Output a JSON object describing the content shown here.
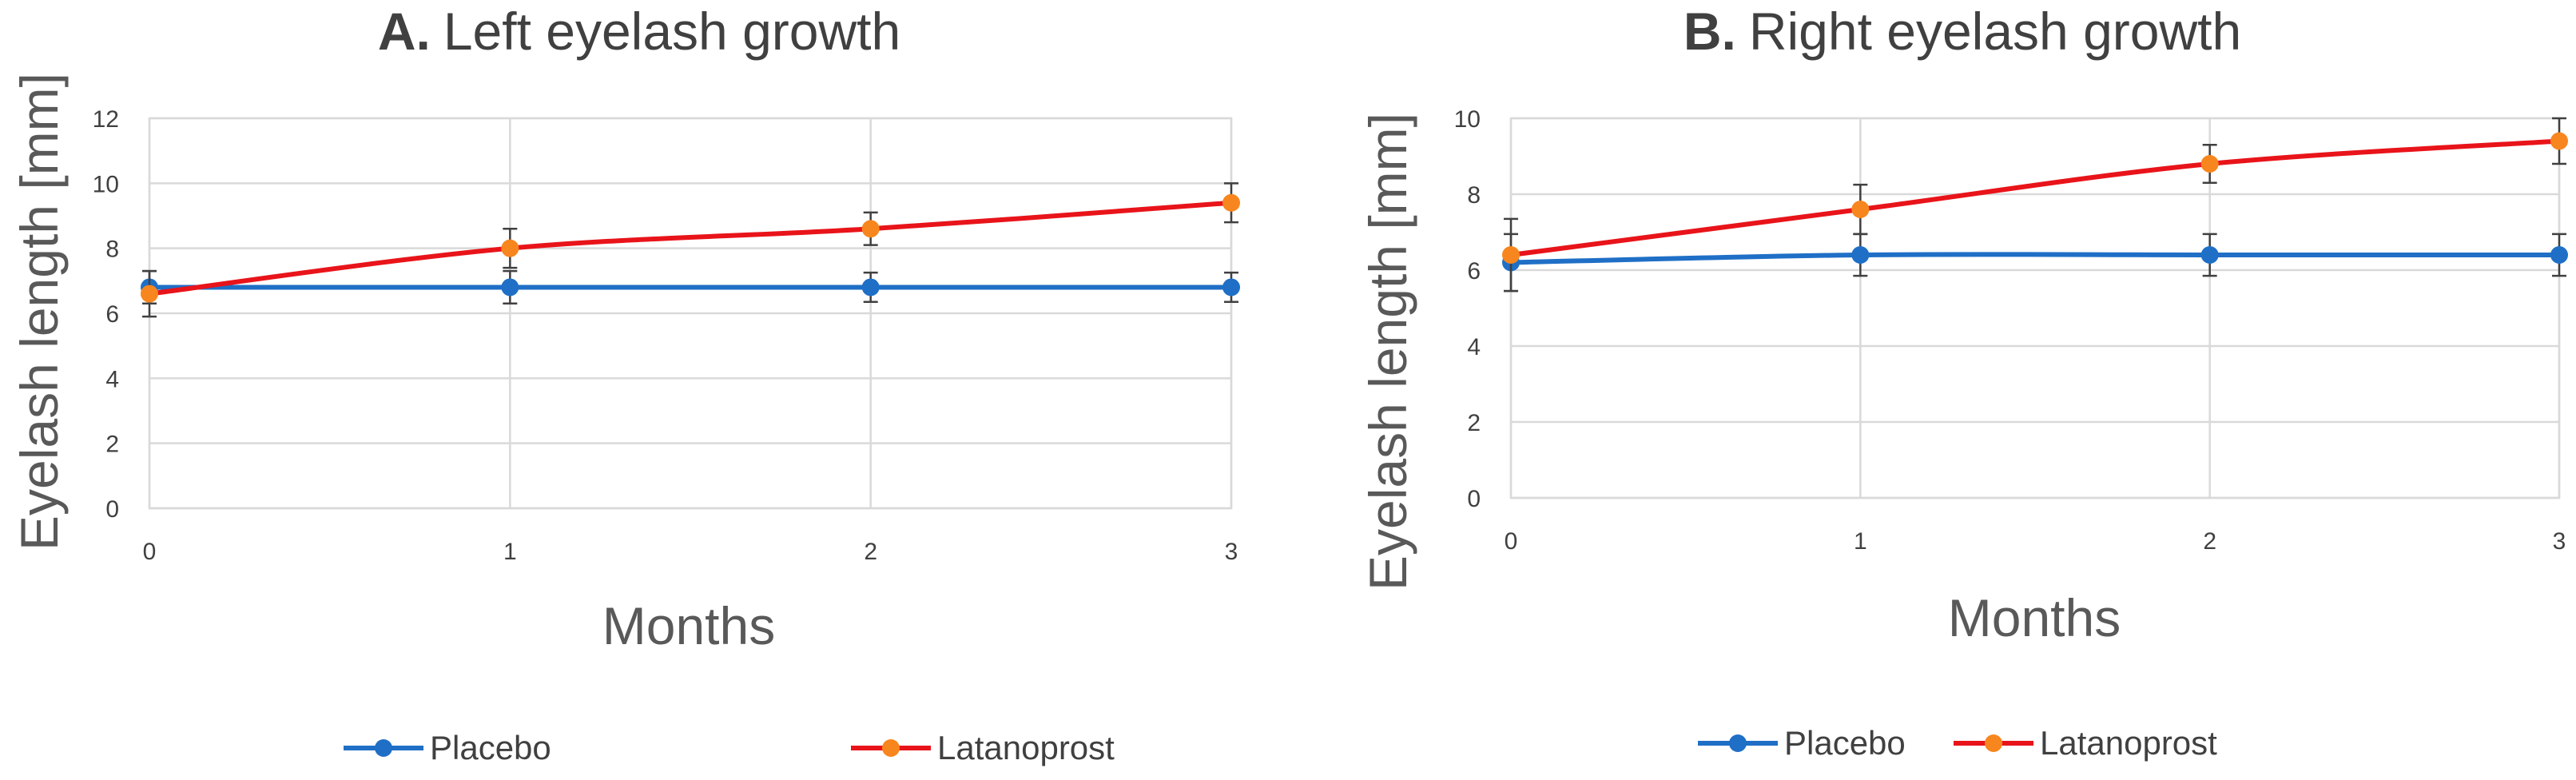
{
  "chart_data": [
    {
      "type": "line",
      "title_prefix": "A.",
      "title": "Left eyelash growth",
      "xlabel": "Months",
      "ylabel": "Eyelash length [mm]",
      "x": [
        0,
        1,
        2,
        3
      ],
      "xticks": [
        "0",
        "1",
        "2",
        "3"
      ],
      "ylim": [
        0,
        12
      ],
      "yticks": [
        "0",
        "2",
        "4",
        "6",
        "8",
        "10",
        "12"
      ],
      "grid": true,
      "legend_position": "bottom",
      "series": [
        {
          "name": "Placebo",
          "line_color": "#1f6fc6",
          "marker_color": "#1f6fc6",
          "values": [
            6.8,
            6.8,
            6.8,
            6.8
          ],
          "errors": [
            0.5,
            0.5,
            0.45,
            0.45
          ]
        },
        {
          "name": "Latanoprost",
          "line_color": "#e8141a",
          "marker_color": "#f7861e",
          "values": [
            6.6,
            8.0,
            8.6,
            9.4
          ],
          "errors": [
            0.7,
            0.6,
            0.5,
            0.6
          ]
        }
      ]
    },
    {
      "type": "line",
      "title_prefix": "B.",
      "title": "Right eyelash growth",
      "xlabel": "Months",
      "ylabel": "Eyelash length [mm]",
      "x": [
        0,
        1,
        2,
        3
      ],
      "xticks": [
        "0",
        "1",
        "2",
        "3"
      ],
      "ylim": [
        0,
        10
      ],
      "yticks": [
        "0",
        "2",
        "4",
        "6",
        "8",
        "10"
      ],
      "grid": true,
      "legend_position": "bottom",
      "series": [
        {
          "name": "Placebo",
          "line_color": "#1f6fc6",
          "marker_color": "#1f6fc6",
          "values": [
            6.2,
            6.4,
            6.4,
            6.4
          ],
          "errors": [
            0.75,
            0.55,
            0.55,
            0.55
          ]
        },
        {
          "name": "Latanoprost",
          "line_color": "#e8141a",
          "marker_color": "#f7861e",
          "values": [
            6.4,
            7.6,
            8.8,
            9.4
          ],
          "errors": [
            0.95,
            0.65,
            0.5,
            0.6
          ]
        }
      ]
    }
  ]
}
